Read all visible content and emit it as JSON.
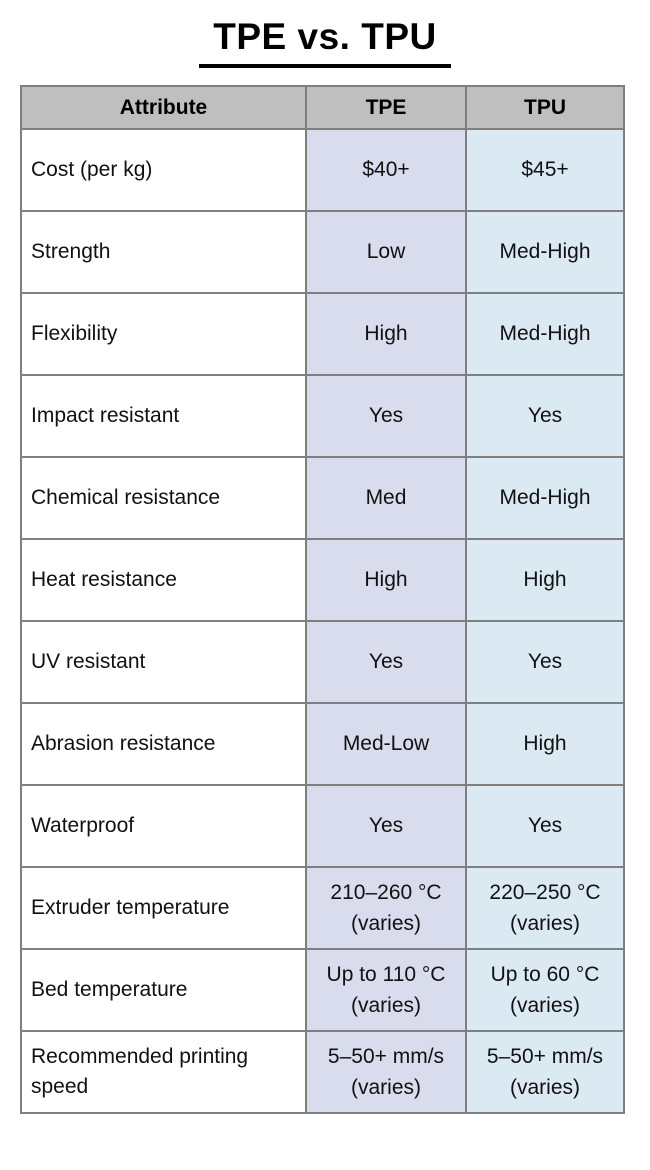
{
  "chart_data": {
    "type": "table",
    "title": "TPE vs. TPU",
    "columns": [
      "Attribute",
      "TPE",
      "TPU"
    ],
    "rows": [
      {
        "attribute": "Cost (per kg)",
        "tpe": "$40+",
        "tpu": "$45+"
      },
      {
        "attribute": "Strength",
        "tpe": "Low",
        "tpu": "Med-High"
      },
      {
        "attribute": "Flexibility",
        "tpe": "High",
        "tpu": "Med-High"
      },
      {
        "attribute": "Impact resistant",
        "tpe": "Yes",
        "tpu": "Yes"
      },
      {
        "attribute": "Chemical resistance",
        "tpe": "Med",
        "tpu": "Med-High"
      },
      {
        "attribute": "Heat resistance",
        "tpe": "High",
        "tpu": "High"
      },
      {
        "attribute": "UV resistant",
        "tpe": "Yes",
        "tpu": "Yes"
      },
      {
        "attribute": "Abrasion resistance",
        "tpe": "Med-Low",
        "tpu": "High"
      },
      {
        "attribute": "Waterproof",
        "tpe": "Yes",
        "tpu": "Yes"
      },
      {
        "attribute": "Extruder temperature",
        "tpe": "210–260 °C\n(varies)",
        "tpu": "220–250 °C\n(varies)"
      },
      {
        "attribute": "Bed temperature",
        "tpe": "Up to 110 °C\n(varies)",
        "tpu": "Up to 60 °C\n(varies)"
      },
      {
        "attribute": "Recommended printing speed",
        "tpe": "5–50+ mm/s\n(varies)",
        "tpu": "5–50+ mm/s\n(varies)"
      }
    ],
    "colors": {
      "header_bg": "#bfbfbf",
      "tpe_bg": "#d9dcec",
      "tpu_bg": "#dbe9f3",
      "border": "#7f7f7f",
      "text": "#111111"
    },
    "layout_hints": {
      "legend_position": "none",
      "grid": "on"
    }
  }
}
